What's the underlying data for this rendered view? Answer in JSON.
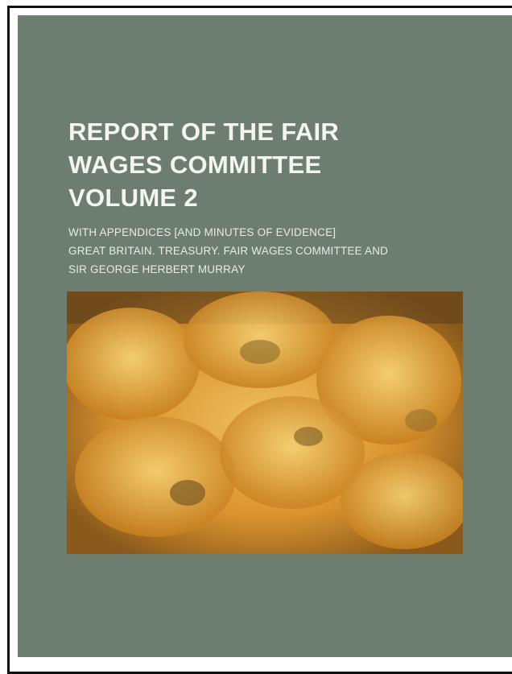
{
  "cover": {
    "title_lines": [
      "REPORT OF THE FAIR",
      "WAGES COMMITTEE",
      "VOLUME 2"
    ],
    "subtitle": "WITH APPENDICES [AND MINUTES OF EVIDENCE]",
    "author_lines": [
      "GREAT BRITAIN. TREASURY. FAIR WAGES COMMITTEE AND",
      "SIR GEORGE HERBERT MURRAY"
    ]
  }
}
